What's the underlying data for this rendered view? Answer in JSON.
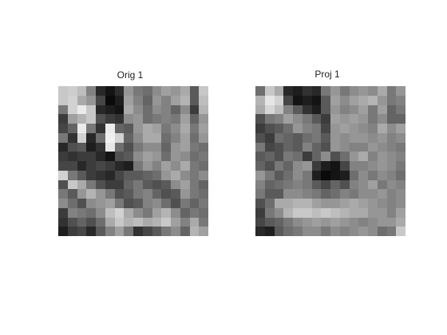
{
  "panels": [
    {
      "title": "Orig 1",
      "pixels": [
        [
          200,
          205,
          190,
          130,
          40,
          20,
          45,
          150,
          120,
          110,
          140,
          160,
          150,
          170,
          90,
          200
        ],
        [
          200,
          210,
          170,
          150,
          70,
          10,
          30,
          160,
          130,
          100,
          150,
          130,
          160,
          180,
          90,
          190
        ],
        [
          120,
          210,
          235,
          200,
          40,
          30,
          20,
          170,
          140,
          110,
          140,
          130,
          100,
          140,
          60,
          180
        ],
        [
          60,
          160,
          180,
          200,
          80,
          60,
          50,
          140,
          150,
          110,
          120,
          130,
          120,
          160,
          100,
          150
        ],
        [
          70,
          100,
          235,
          120,
          50,
          235,
          100,
          90,
          150,
          170,
          160,
          120,
          140,
          170,
          120,
          160
        ],
        [
          120,
          50,
          210,
          40,
          110,
          240,
          210,
          100,
          140,
          170,
          170,
          110,
          130,
          160,
          110,
          150
        ],
        [
          40,
          80,
          90,
          30,
          50,
          230,
          110,
          80,
          120,
          140,
          140,
          100,
          150,
          160,
          120,
          110
        ],
        [
          60,
          50,
          60,
          60,
          40,
          20,
          80,
          90,
          140,
          160,
          150,
          110,
          150,
          140,
          110,
          120
        ],
        [
          70,
          70,
          40,
          60,
          70,
          60,
          40,
          30,
          120,
          150,
          130,
          160,
          140,
          170,
          120,
          110
        ],
        [
          210,
          120,
          90,
          60,
          50,
          40,
          70,
          90,
          90,
          100,
          110,
          150,
          170,
          140,
          120,
          140
        ],
        [
          80,
          200,
          170,
          120,
          80,
          60,
          60,
          100,
          120,
          90,
          80,
          90,
          140,
          160,
          120,
          100
        ],
        [
          120,
          90,
          150,
          180,
          150,
          120,
          80,
          90,
          120,
          130,
          100,
          80,
          90,
          150,
          120,
          110
        ],
        [
          140,
          110,
          80,
          140,
          150,
          160,
          120,
          80,
          90,
          130,
          140,
          110,
          80,
          120,
          100,
          120
        ],
        [
          60,
          130,
          120,
          110,
          140,
          190,
          210,
          170,
          140,
          120,
          160,
          180,
          140,
          100,
          120,
          110
        ],
        [
          50,
          80,
          100,
          80,
          110,
          170,
          200,
          180,
          190,
          170,
          180,
          200,
          160,
          130,
          170,
          120
        ],
        [
          30,
          60,
          70,
          40,
          90,
          130,
          160,
          120,
          50,
          70,
          90,
          120,
          140,
          100,
          180,
          160
        ]
      ]
    },
    {
      "title": "Proj 1",
      "pixels": [
        [
          110,
          200,
          170,
          40,
          30,
          50,
          40,
          120,
          150,
          120,
          140,
          150,
          140,
          170,
          120,
          150
        ],
        [
          180,
          230,
          210,
          70,
          20,
          30,
          20,
          90,
          160,
          140,
          160,
          170,
          180,
          150,
          120,
          130
        ],
        [
          170,
          215,
          190,
          130,
          90,
          50,
          30,
          90,
          150,
          130,
          140,
          160,
          120,
          160,
          100,
          120
        ],
        [
          80,
          120,
          130,
          160,
          140,
          120,
          90,
          60,
          160,
          150,
          160,
          150,
          120,
          140,
          100,
          100
        ],
        [
          60,
          80,
          90,
          110,
          150,
          130,
          120,
          70,
          150,
          160,
          150,
          140,
          130,
          170,
          140,
          160
        ],
        [
          80,
          60,
          110,
          100,
          90,
          110,
          120,
          90,
          150,
          140,
          150,
          150,
          140,
          150,
          130,
          140
        ],
        [
          120,
          70,
          80,
          100,
          90,
          130,
          100,
          80,
          150,
          140,
          130,
          130,
          150,
          140,
          130,
          120
        ],
        [
          90,
          100,
          80,
          120,
          110,
          60,
          100,
          140,
          80,
          110,
          150,
          170,
          130,
          150,
          140,
          130
        ],
        [
          100,
          80,
          120,
          100,
          140,
          150,
          60,
          30,
          20,
          70,
          130,
          130,
          140,
          150,
          140,
          120
        ],
        [
          150,
          120,
          90,
          110,
          140,
          120,
          30,
          10,
          20,
          30,
          110,
          140,
          120,
          140,
          130,
          110
        ],
        [
          130,
          100,
          110,
          120,
          130,
          120,
          90,
          70,
          100,
          80,
          130,
          140,
          160,
          120,
          140,
          130
        ],
        [
          120,
          90,
          90,
          140,
          140,
          130,
          120,
          100,
          110,
          130,
          120,
          140,
          140,
          150,
          130,
          140
        ],
        [
          80,
          110,
          170,
          170,
          180,
          180,
          160,
          150,
          150,
          160,
          170,
          160,
          150,
          140,
          130,
          140
        ],
        [
          60,
          120,
          140,
          180,
          200,
          200,
          190,
          200,
          190,
          180,
          170,
          170,
          150,
          150,
          130,
          160
        ],
        [
          70,
          90,
          100,
          120,
          140,
          150,
          160,
          150,
          160,
          150,
          140,
          130,
          140,
          150,
          150,
          170
        ],
        [
          40,
          30,
          90,
          110,
          120,
          140,
          140,
          120,
          140,
          130,
          140,
          150,
          140,
          110,
          120,
          200
        ]
      ]
    }
  ]
}
